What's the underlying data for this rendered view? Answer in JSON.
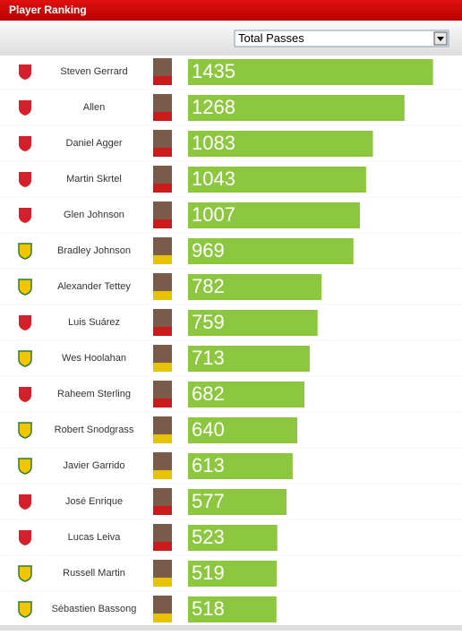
{
  "chart_data": {
    "type": "bar",
    "orientation": "horizontal",
    "title": "Player Ranking",
    "metric": "Total Passes",
    "categories": [
      "Steven Gerrard",
      "Allen",
      "Daniel Agger",
      "Martin Skrtel",
      "Glen Johnson",
      "Bradley Johnson",
      "Alexander Tettey",
      "Luis Suárez",
      "Wes Hoolahan",
      "Raheem Sterling",
      "Robert Snodgrass",
      "Javier Garrido",
      "José Enrique",
      "Lucas Leiva",
      "Russell Martin",
      "Sébastien Bassong"
    ],
    "values": [
      1435,
      1268,
      1083,
      1043,
      1007,
      969,
      782,
      759,
      713,
      682,
      640,
      613,
      577,
      523,
      519,
      518
    ],
    "badge_colors": [
      "#d4202a",
      "#d4202a",
      "#d4202a",
      "#d4202a",
      "#d4202a",
      "#f2c500",
      "#f2c500",
      "#d4202a",
      "#f2c500",
      "#d4202a",
      "#f2c500",
      "#f2c500",
      "#d4202a",
      "#d4202a",
      "#f2c500",
      "#f2c500"
    ],
    "color": "#8dc63f",
    "xlim": [
      0,
      1500
    ]
  }
}
